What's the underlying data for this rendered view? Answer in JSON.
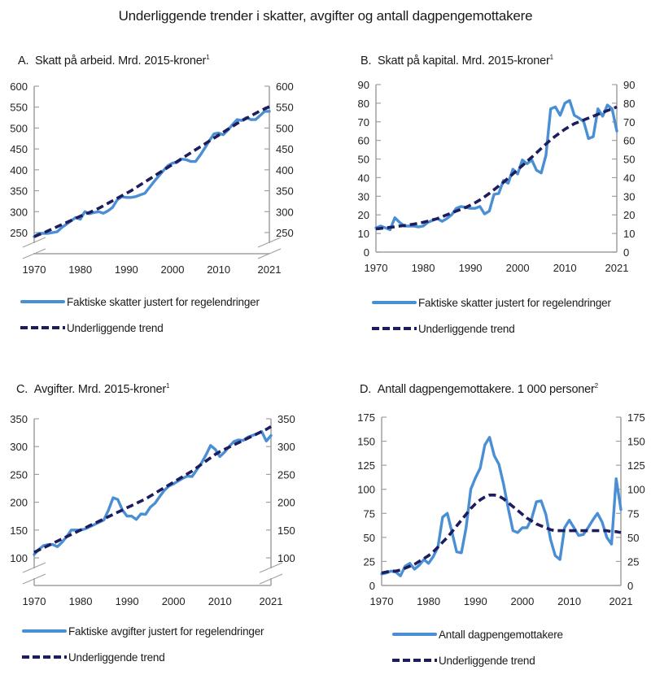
{
  "title": "Underliggende trender i skatter, avgifter og antall dagpengemottakere",
  "colors": {
    "actual": "#4a8fd4",
    "trend": "#1c1c5e",
    "axis": "#a0a0a0"
  },
  "chart_data": [
    {
      "id": "A",
      "type": "line",
      "title_prefix": "A.",
      "title": "Skatt på arbeid. Mrd. 2015-kroner",
      "footnote": "1",
      "xlabel": "",
      "ylabel": "",
      "x_start": 1970,
      "x_end": 2021,
      "xticks": [
        1970,
        1980,
        1990,
        2000,
        2010,
        2021
      ],
      "yticks": [
        250,
        300,
        350,
        400,
        450,
        500,
        550,
        600
      ],
      "ylim": [
        200,
        600
      ],
      "axis_break": true,
      "legend": [
        "Faktiske skatter justert for regelendringer",
        "Underliggende trend"
      ],
      "series": [
        {
          "name": "Faktiske skatter justert for regelendringer",
          "style": "solid",
          "values": [
            240,
            248,
            248,
            248,
            250,
            252,
            262,
            270,
            278,
            286,
            282,
            300,
            295,
            298,
            300,
            296,
            302,
            310,
            328,
            336,
            334,
            334,
            336,
            340,
            344,
            358,
            372,
            385,
            398,
            410,
            416,
            418,
            426,
            424,
            420,
            420,
            435,
            452,
            470,
            486,
            488,
            484,
            495,
            508,
            520,
            518,
            525,
            520,
            520,
            530,
            540,
            540
          ]
        },
        {
          "name": "Underliggende trend",
          "style": "dash",
          "values": [
            240,
            245,
            249,
            254,
            259,
            264,
            269,
            274,
            279,
            284,
            289,
            294,
            298,
            303,
            308,
            314,
            320,
            326,
            332,
            338,
            344,
            350,
            357,
            364,
            371,
            378,
            385,
            392,
            399,
            406,
            413,
            420,
            427,
            434,
            441,
            448,
            455,
            462,
            469,
            476,
            483,
            490,
            497,
            504,
            511,
            517,
            523,
            529,
            535,
            541,
            546,
            551
          ]
        }
      ]
    },
    {
      "id": "B",
      "type": "line",
      "title_prefix": "B.",
      "title": "Skatt på kapital. Mrd. 2015-kroner",
      "footnote": "1",
      "xlabel": "",
      "ylabel": "",
      "x_start": 1970,
      "x_end": 2021,
      "xticks": [
        1970,
        1980,
        1990,
        2000,
        2010,
        2021
      ],
      "yticks": [
        0,
        10,
        20,
        30,
        40,
        50,
        60,
        70,
        80,
        90
      ],
      "ylim": [
        0,
        90
      ],
      "axis_break": false,
      "legend": [
        "Faktiske skatter justert for regelendringer",
        "Underliggende trend"
      ],
      "series": [
        {
          "name": "Faktiske skatter justert for regelendringer",
          "style": "solid",
          "values": [
            13,
            14,
            13,
            12,
            18.5,
            16,
            14,
            14,
            14,
            13.5,
            14,
            16,
            17,
            18,
            16.5,
            18,
            20,
            23.5,
            24.5,
            24,
            23.5,
            23.5,
            24.5,
            20.5,
            22,
            31,
            31.5,
            38.5,
            37,
            44.5,
            42,
            49.5,
            47.5,
            49.5,
            44,
            42.5,
            52,
            77,
            78,
            73.5,
            80,
            81.5,
            73.5,
            72,
            70,
            61,
            62,
            77,
            73,
            79,
            77,
            65
          ]
        },
        {
          "name": "Underliggende trend",
          "style": "dash",
          "values": [
            12.5,
            12.7,
            13,
            13.3,
            13.6,
            14,
            14.3,
            14.7,
            15,
            15.5,
            16,
            16.6,
            17.3,
            18,
            19,
            20,
            21,
            22,
            23,
            24,
            25.2,
            26.5,
            28,
            29.7,
            31.5,
            33.5,
            35.5,
            37.5,
            39.8,
            42,
            44.2,
            46.5,
            48.8,
            51,
            53.3,
            55.7,
            58,
            60.3,
            62.3,
            64.2,
            66,
            67.5,
            69,
            70,
            71,
            72,
            73,
            74,
            75,
            76,
            77,
            78
          ]
        }
      ]
    },
    {
      "id": "C",
      "type": "line",
      "title_prefix": "C.",
      "title": "Avgifter. Mrd. 2015-kroner",
      "footnote": "1",
      "xlabel": "",
      "ylabel": "",
      "x_start": 1970,
      "x_end": 2021,
      "xticks": [
        1970,
        1980,
        1990,
        2000,
        2010,
        2021
      ],
      "yticks": [
        100,
        150,
        200,
        250,
        300,
        350
      ],
      "ylim": [
        50,
        350
      ],
      "axis_break": true,
      "legend": [
        "Faktiske avgifter justert for regelendringer",
        "Underliggende trend"
      ],
      "series": [
        {
          "name": "Faktiske avgifter justert for regelendringer",
          "style": "solid",
          "values": [
            106,
            115,
            122,
            124,
            124,
            120,
            128,
            138,
            150,
            150,
            150,
            152,
            156,
            160,
            164,
            168,
            186,
            208,
            205,
            186,
            175,
            175,
            169,
            179,
            178,
            191,
            198,
            210,
            221,
            229,
            233,
            238,
            243,
            247,
            246,
            258,
            270,
            285,
            302,
            295,
            282,
            290,
            300,
            309,
            312,
            311,
            317,
            320,
            323,
            327,
            310,
            320
          ]
        },
        {
          "name": "Underliggende trend",
          "style": "dash",
          "values": [
            110,
            114,
            118,
            122,
            126,
            130,
            134,
            138,
            142,
            146,
            150,
            154,
            158,
            162,
            166,
            170,
            174,
            178,
            182,
            186,
            190,
            194,
            198,
            202,
            206,
            211,
            216,
            221,
            226,
            231,
            236,
            241,
            246,
            251,
            256,
            262,
            268,
            274,
            280,
            286,
            291,
            295,
            299,
            303,
            307,
            311,
            315,
            319,
            323,
            327,
            331,
            336
          ]
        }
      ]
    },
    {
      "id": "D",
      "type": "line",
      "title_prefix": "D.",
      "title": "Antall dagpengemottakere. 1 000 personer",
      "footnote": "2",
      "xlabel": "",
      "ylabel": "",
      "x_start": 1970,
      "x_end": 2021,
      "xticks": [
        1970,
        1980,
        1990,
        2000,
        2010,
        2021
      ],
      "yticks": [
        0,
        25,
        50,
        75,
        100,
        125,
        150,
        175
      ],
      "ylim": [
        0,
        175
      ],
      "axis_break": false,
      "legend": [
        "Antall dagpengemottakere",
        "Underliggende trend"
      ],
      "series": [
        {
          "name": "Antall dagpengemottakere",
          "style": "solid",
          "values": [
            12,
            13,
            15,
            14,
            10,
            20,
            23,
            17,
            21,
            27,
            23,
            30,
            40,
            71,
            75,
            55,
            35,
            34,
            60,
            100,
            112,
            122,
            146,
            154,
            135,
            126,
            105,
            80,
            57,
            55,
            60,
            60,
            70,
            87,
            88,
            74,
            48,
            31,
            27,
            60,
            68,
            60,
            52,
            53,
            60,
            68,
            75,
            66,
            50,
            43,
            111,
            79
          ]
        },
        {
          "name": "Underliggende trend",
          "style": "dash",
          "values": [
            13,
            14,
            15,
            15,
            16,
            18,
            20,
            22,
            25,
            28,
            31,
            35,
            40,
            45,
            50,
            56,
            62,
            68,
            74,
            80,
            85,
            89,
            92,
            94,
            94,
            93,
            90,
            86,
            82,
            78,
            74,
            70,
            67,
            64,
            62,
            60,
            58,
            57,
            57,
            57,
            57,
            57,
            57,
            57,
            57,
            57,
            57,
            57,
            57,
            56,
            56,
            55
          ]
        }
      ]
    }
  ]
}
